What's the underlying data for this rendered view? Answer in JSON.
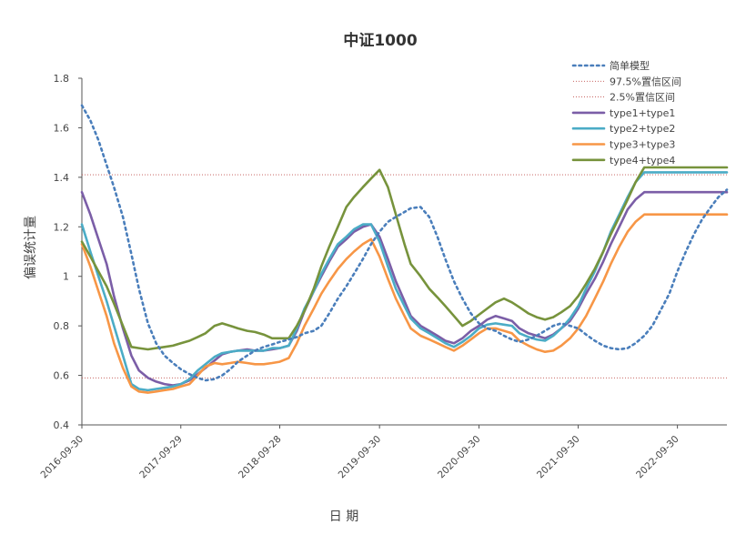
{
  "chart_data": {
    "type": "line",
    "title": "中证1000",
    "xlabel": "日 期",
    "ylabel": "偏误统计量",
    "ylim": [
      0.4,
      1.8
    ],
    "yticks": [
      {
        "value": 0.4,
        "label": "0.4"
      },
      {
        "value": 0.6,
        "label": "0.6"
      },
      {
        "value": 0.8,
        "label": "0.8"
      },
      {
        "value": 1.0,
        "label": "1"
      },
      {
        "value": 1.2,
        "label": "1.2"
      },
      {
        "value": 1.4,
        "label": "1.4"
      },
      {
        "value": 1.6,
        "label": "1.6"
      },
      {
        "value": 1.8,
        "label": "1.8"
      }
    ],
    "xlim": [
      "2016-09-30",
      "2023-03-31"
    ],
    "xticks": [
      "2016-09-30",
      "2017-09-29",
      "2018-09-28",
      "2019-09-30",
      "2020-09-30",
      "2021-09-30",
      "2022-09-30"
    ],
    "x": [
      "2016-09-30",
      "2016-10-31",
      "2016-11-30",
      "2016-12-30",
      "2017-01-26",
      "2017-02-28",
      "2017-03-31",
      "2017-04-28",
      "2017-05-31",
      "2017-06-30",
      "2017-07-31",
      "2017-08-31",
      "2017-09-29",
      "2017-10-31",
      "2017-11-30",
      "2017-12-29",
      "2018-01-31",
      "2018-02-28",
      "2018-03-30",
      "2018-04-27",
      "2018-05-31",
      "2018-06-29",
      "2018-07-31",
      "2018-08-31",
      "2018-09-28",
      "2018-10-31",
      "2018-11-30",
      "2018-12-28",
      "2019-01-31",
      "2019-02-28",
      "2019-03-29",
      "2019-04-30",
      "2019-05-31",
      "2019-06-28",
      "2019-07-31",
      "2019-08-30",
      "2019-09-30",
      "2019-10-31",
      "2019-11-29",
      "2019-12-31",
      "2020-01-23",
      "2020-02-28",
      "2020-03-31",
      "2020-04-30",
      "2020-05-29",
      "2020-06-30",
      "2020-07-31",
      "2020-08-31",
      "2020-09-30",
      "2020-10-30",
      "2020-11-30",
      "2020-12-31",
      "2021-01-29",
      "2021-02-26",
      "2021-03-31",
      "2021-04-30",
      "2021-05-31",
      "2021-06-30",
      "2021-07-30",
      "2021-08-31",
      "2021-09-30",
      "2021-10-29",
      "2021-11-30",
      "2021-12-31",
      "2022-01-28",
      "2022-02-28",
      "2022-03-31",
      "2022-04-29",
      "2022-05-31",
      "2022-06-30",
      "2022-07-29",
      "2022-08-31",
      "2022-09-30",
      "2022-10-31",
      "2022-11-30",
      "2022-12-30",
      "2023-01-31",
      "2023-02-28",
      "2023-03-31"
    ],
    "series": [
      {
        "name": "简单模型",
        "color": "#4a7ebb",
        "style": "dotted",
        "values": [
          1.69,
          1.63,
          1.55,
          1.45,
          1.36,
          1.24,
          1.09,
          0.95,
          0.81,
          0.73,
          0.68,
          0.65,
          0.625,
          0.605,
          0.59,
          0.58,
          0.585,
          0.6,
          0.625,
          0.655,
          0.68,
          0.7,
          0.715,
          0.725,
          0.735,
          0.745,
          0.755,
          0.77,
          0.78,
          0.8,
          0.85,
          0.91,
          0.96,
          1.01,
          1.07,
          1.13,
          1.18,
          1.22,
          1.24,
          1.26,
          1.275,
          1.28,
          1.24,
          1.16,
          1.07,
          0.98,
          0.91,
          0.85,
          0.81,
          0.79,
          0.78,
          0.76,
          0.745,
          0.735,
          0.745,
          0.76,
          0.78,
          0.8,
          0.81,
          0.8,
          0.79,
          0.765,
          0.74,
          0.72,
          0.71,
          0.705,
          0.71,
          0.73,
          0.76,
          0.8,
          0.86,
          0.93,
          1.02,
          1.1,
          1.17,
          1.23,
          1.28,
          1.32,
          1.35
        ]
      },
      {
        "name": "97.5%置信区间",
        "color": "#c0504d",
        "style": "thin-dotted",
        "values": [
          1.41,
          1.41,
          1.41,
          1.41,
          1.41,
          1.41,
          1.41,
          1.41,
          1.41,
          1.41,
          1.41,
          1.41,
          1.41,
          1.41,
          1.41,
          1.41,
          1.41,
          1.41,
          1.41,
          1.41,
          1.41,
          1.41,
          1.41,
          1.41,
          1.41,
          1.41,
          1.41,
          1.41,
          1.41,
          1.41,
          1.41,
          1.41,
          1.41,
          1.41,
          1.41,
          1.41,
          1.41,
          1.41,
          1.41,
          1.41,
          1.41,
          1.41,
          1.41,
          1.41,
          1.41,
          1.41,
          1.41,
          1.41,
          1.41,
          1.41,
          1.41,
          1.41,
          1.41,
          1.41,
          1.41,
          1.41,
          1.41,
          1.41,
          1.41,
          1.41,
          1.41,
          1.41,
          1.41,
          1.41,
          1.41,
          1.41,
          1.41,
          1.41,
          1.41,
          1.41,
          1.41,
          1.41,
          1.41,
          1.41,
          1.41,
          1.41,
          1.41,
          1.41,
          1.41
        ]
      },
      {
        "name": "2.5%置信区间",
        "color": "#c0504d",
        "style": "thin-dotted",
        "values": [
          0.59,
          0.59,
          0.59,
          0.59,
          0.59,
          0.59,
          0.59,
          0.59,
          0.59,
          0.59,
          0.59,
          0.59,
          0.59,
          0.59,
          0.59,
          0.59,
          0.59,
          0.59,
          0.59,
          0.59,
          0.59,
          0.59,
          0.59,
          0.59,
          0.59,
          0.59,
          0.59,
          0.59,
          0.59,
          0.59,
          0.59,
          0.59,
          0.59,
          0.59,
          0.59,
          0.59,
          0.59,
          0.59,
          0.59,
          0.59,
          0.59,
          0.59,
          0.59,
          0.59,
          0.59,
          0.59,
          0.59,
          0.59,
          0.59,
          0.59,
          0.59,
          0.59,
          0.59,
          0.59,
          0.59,
          0.59,
          0.59,
          0.59,
          0.59,
          0.59,
          0.59,
          0.59,
          0.59,
          0.59,
          0.59,
          0.59,
          0.59,
          0.59,
          0.59,
          0.59,
          0.59,
          0.59,
          0.59,
          0.59,
          0.59,
          0.59,
          0.59,
          0.59,
          0.59
        ]
      },
      {
        "name": "type1+type1",
        "color": "#7b5ea7",
        "style": "solid",
        "values": [
          1.34,
          1.25,
          1.15,
          1.05,
          0.92,
          0.79,
          0.68,
          0.62,
          0.59,
          0.575,
          0.565,
          0.56,
          0.565,
          0.58,
          0.605,
          0.63,
          0.66,
          0.685,
          0.695,
          0.7,
          0.705,
          0.7,
          0.7,
          0.705,
          0.71,
          0.72,
          0.78,
          0.86,
          0.94,
          1.0,
          1.06,
          1.12,
          1.15,
          1.18,
          1.2,
          1.21,
          1.16,
          1.07,
          0.98,
          0.9,
          0.84,
          0.8,
          0.78,
          0.76,
          0.74,
          0.73,
          0.75,
          0.78,
          0.8,
          0.825,
          0.84,
          0.83,
          0.82,
          0.79,
          0.77,
          0.76,
          0.75,
          0.765,
          0.79,
          0.82,
          0.87,
          0.93,
          0.99,
          1.06,
          1.13,
          1.2,
          1.27,
          1.31,
          1.34,
          1.34,
          1.34,
          1.34,
          1.34,
          1.34,
          1.34,
          1.34,
          1.34,
          1.34,
          1.34
        ]
      },
      {
        "name": "type2+type2",
        "color": "#4bacc6",
        "style": "solid",
        "values": [
          1.21,
          1.1,
          1.0,
          0.9,
          0.8,
          0.68,
          0.565,
          0.545,
          0.54,
          0.545,
          0.55,
          0.555,
          0.565,
          0.585,
          0.62,
          0.645,
          0.675,
          0.69,
          0.695,
          0.7,
          0.7,
          0.7,
          0.7,
          0.71,
          0.71,
          0.72,
          0.79,
          0.87,
          0.94,
          1.01,
          1.07,
          1.13,
          1.16,
          1.19,
          1.21,
          1.21,
          1.14,
          1.04,
          0.95,
          0.88,
          0.83,
          0.79,
          0.77,
          0.75,
          0.73,
          0.715,
          0.735,
          0.76,
          0.79,
          0.805,
          0.81,
          0.805,
          0.8,
          0.77,
          0.755,
          0.745,
          0.74,
          0.76,
          0.79,
          0.83,
          0.88,
          0.95,
          1.02,
          1.1,
          1.18,
          1.25,
          1.32,
          1.38,
          1.42,
          1.42,
          1.42,
          1.42,
          1.42,
          1.42,
          1.42,
          1.42,
          1.42,
          1.42,
          1.42
        ]
      },
      {
        "name": "type3+type3",
        "color": "#f79646",
        "style": "solid",
        "values": [
          1.13,
          1.04,
          0.94,
          0.84,
          0.73,
          0.63,
          0.555,
          0.535,
          0.53,
          0.535,
          0.54,
          0.545,
          0.555,
          0.565,
          0.6,
          0.635,
          0.65,
          0.645,
          0.65,
          0.655,
          0.65,
          0.645,
          0.645,
          0.65,
          0.655,
          0.67,
          0.73,
          0.8,
          0.87,
          0.93,
          0.98,
          1.03,
          1.07,
          1.1,
          1.13,
          1.15,
          1.08,
          0.99,
          0.91,
          0.84,
          0.79,
          0.76,
          0.745,
          0.73,
          0.715,
          0.7,
          0.72,
          0.745,
          0.77,
          0.79,
          0.79,
          0.78,
          0.77,
          0.74,
          0.72,
          0.705,
          0.695,
          0.7,
          0.72,
          0.75,
          0.79,
          0.84,
          0.91,
          0.98,
          1.05,
          1.12,
          1.18,
          1.22,
          1.25,
          1.25,
          1.25,
          1.25,
          1.25,
          1.25,
          1.25,
          1.25,
          1.25,
          1.25,
          1.25
        ]
      },
      {
        "name": "type4+type4",
        "color": "#77933c",
        "style": "solid",
        "values": [
          1.14,
          1.08,
          1.02,
          0.96,
          0.89,
          0.8,
          0.715,
          0.71,
          0.705,
          0.71,
          0.715,
          0.72,
          0.73,
          0.74,
          0.755,
          0.77,
          0.8,
          0.81,
          0.8,
          0.79,
          0.78,
          0.775,
          0.765,
          0.75,
          0.75,
          0.75,
          0.8,
          0.86,
          0.95,
          1.04,
          1.12,
          1.2,
          1.28,
          1.32,
          1.36,
          1.395,
          1.43,
          1.36,
          1.25,
          1.13,
          1.05,
          1.0,
          0.95,
          0.915,
          0.88,
          0.84,
          0.8,
          0.82,
          0.845,
          0.87,
          0.895,
          0.91,
          0.895,
          0.875,
          0.85,
          0.835,
          0.825,
          0.835,
          0.855,
          0.88,
          0.92,
          0.97,
          1.03,
          1.1,
          1.17,
          1.24,
          1.31,
          1.38,
          1.44,
          1.44,
          1.44,
          1.44,
          1.44,
          1.44,
          1.44,
          1.44,
          1.44,
          1.44,
          1.44
        ]
      }
    ],
    "grid": false,
    "legend": "top-right"
  }
}
